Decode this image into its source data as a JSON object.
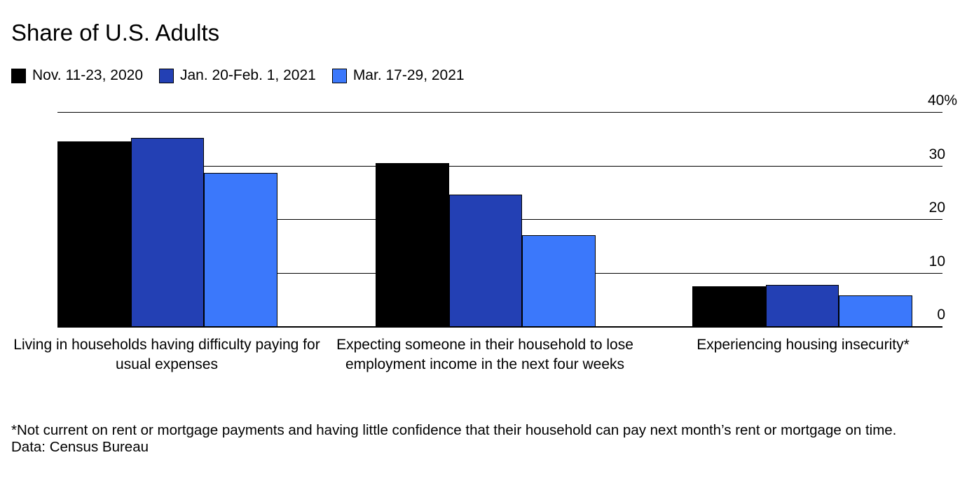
{
  "title": "Share of U.S. Adults",
  "legend": [
    {
      "label": "Nov. 11-23, 2020",
      "color": "#000000",
      "icon": "legend-swatch-black-icon"
    },
    {
      "label": "Jan. 20-Feb. 1, 2021",
      "color": "#2340B4",
      "icon": "legend-swatch-darkblue-icon"
    },
    {
      "label": "Mar. 17-29, 2021",
      "color": "#3B78FB",
      "icon": "legend-swatch-lightblue-icon"
    }
  ],
  "chart_data": {
    "type": "bar",
    "title": "Share of U.S. Adults",
    "categories": [
      "Living in households having difficulty paying for usual expenses",
      "Expecting someone in their household to lose employment income in the next four weeks",
      "Experiencing housing insecurity*"
    ],
    "series": [
      {
        "name": "Nov. 11-23, 2020",
        "color": "#000000",
        "values": [
          34.6,
          30.6,
          7.6
        ]
      },
      {
        "name": "Jan. 20-Feb. 1, 2021",
        "color": "#2340B4",
        "values": [
          35.3,
          24.7,
          7.8
        ]
      },
      {
        "name": "Mar. 17-29, 2021",
        "color": "#3B78FB",
        "values": [
          28.8,
          17.1,
          5.9
        ]
      }
    ],
    "xlabel": "",
    "ylabel": "",
    "ylim": [
      0,
      40
    ],
    "yticks": [
      0,
      10,
      20,
      30,
      40
    ],
    "ytick_labels": [
      "0",
      "10",
      "20",
      "30",
      "40%"
    ],
    "grid": true,
    "axis_side": "right",
    "legend_position": "top-left",
    "gridline_color": "#000000",
    "background_color": "#ffffff"
  },
  "footnote": {
    "note": "*Not current on rent or mortgage payments and having little confidence that their household can pay next month’s rent or mortgage on time.",
    "source": "Data: Census Bureau"
  }
}
